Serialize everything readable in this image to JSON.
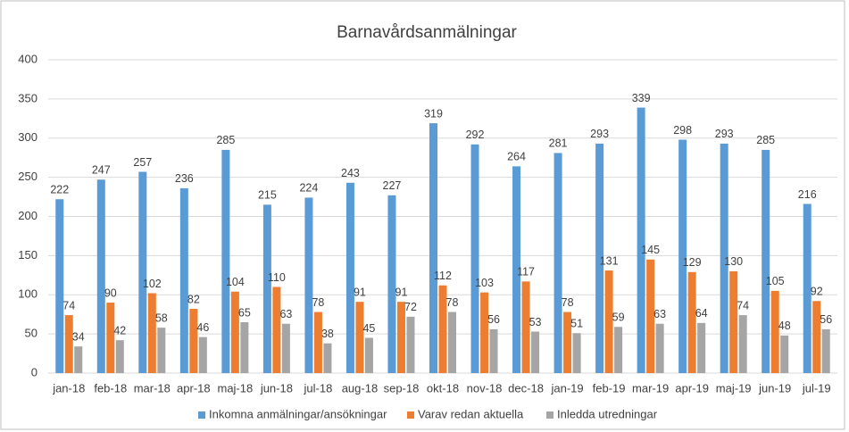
{
  "chart_data": {
    "type": "bar",
    "title": "Barnavårdsanmälningar",
    "categories": [
      "jan-18",
      "feb-18",
      "mar-18",
      "apr-18",
      "maj-18",
      "jun-18",
      "jul-18",
      "aug-18",
      "sep-18",
      "okt-18",
      "nov-18",
      "dec-18",
      "jan-19",
      "feb-19",
      "mar-19",
      "apr-19",
      "maj-19",
      "jun-19",
      "jul-19"
    ],
    "series": [
      {
        "name": "Inkomna anmälningar/ansökningar",
        "color": "#5b9bd5",
        "values": [
          222,
          247,
          257,
          236,
          285,
          215,
          224,
          243,
          227,
          319,
          292,
          264,
          281,
          293,
          339,
          298,
          293,
          285,
          216
        ]
      },
      {
        "name": "Varav redan aktuella",
        "color": "#ed7d31",
        "values": [
          74,
          90,
          102,
          82,
          104,
          110,
          78,
          91,
          91,
          112,
          103,
          117,
          78,
          131,
          145,
          129,
          130,
          105,
          92
        ]
      },
      {
        "name": "Inledda utredningar",
        "color": "#a5a5a5",
        "values": [
          34,
          42,
          58,
          46,
          65,
          63,
          38,
          45,
          72,
          78,
          56,
          53,
          51,
          59,
          63,
          64,
          74,
          48,
          56
        ]
      }
    ],
    "ylim": [
      0,
      400
    ],
    "yticks": [
      0,
      50,
      100,
      150,
      200,
      250,
      300,
      350,
      400
    ],
    "grid": true,
    "legend": "bottom"
  }
}
